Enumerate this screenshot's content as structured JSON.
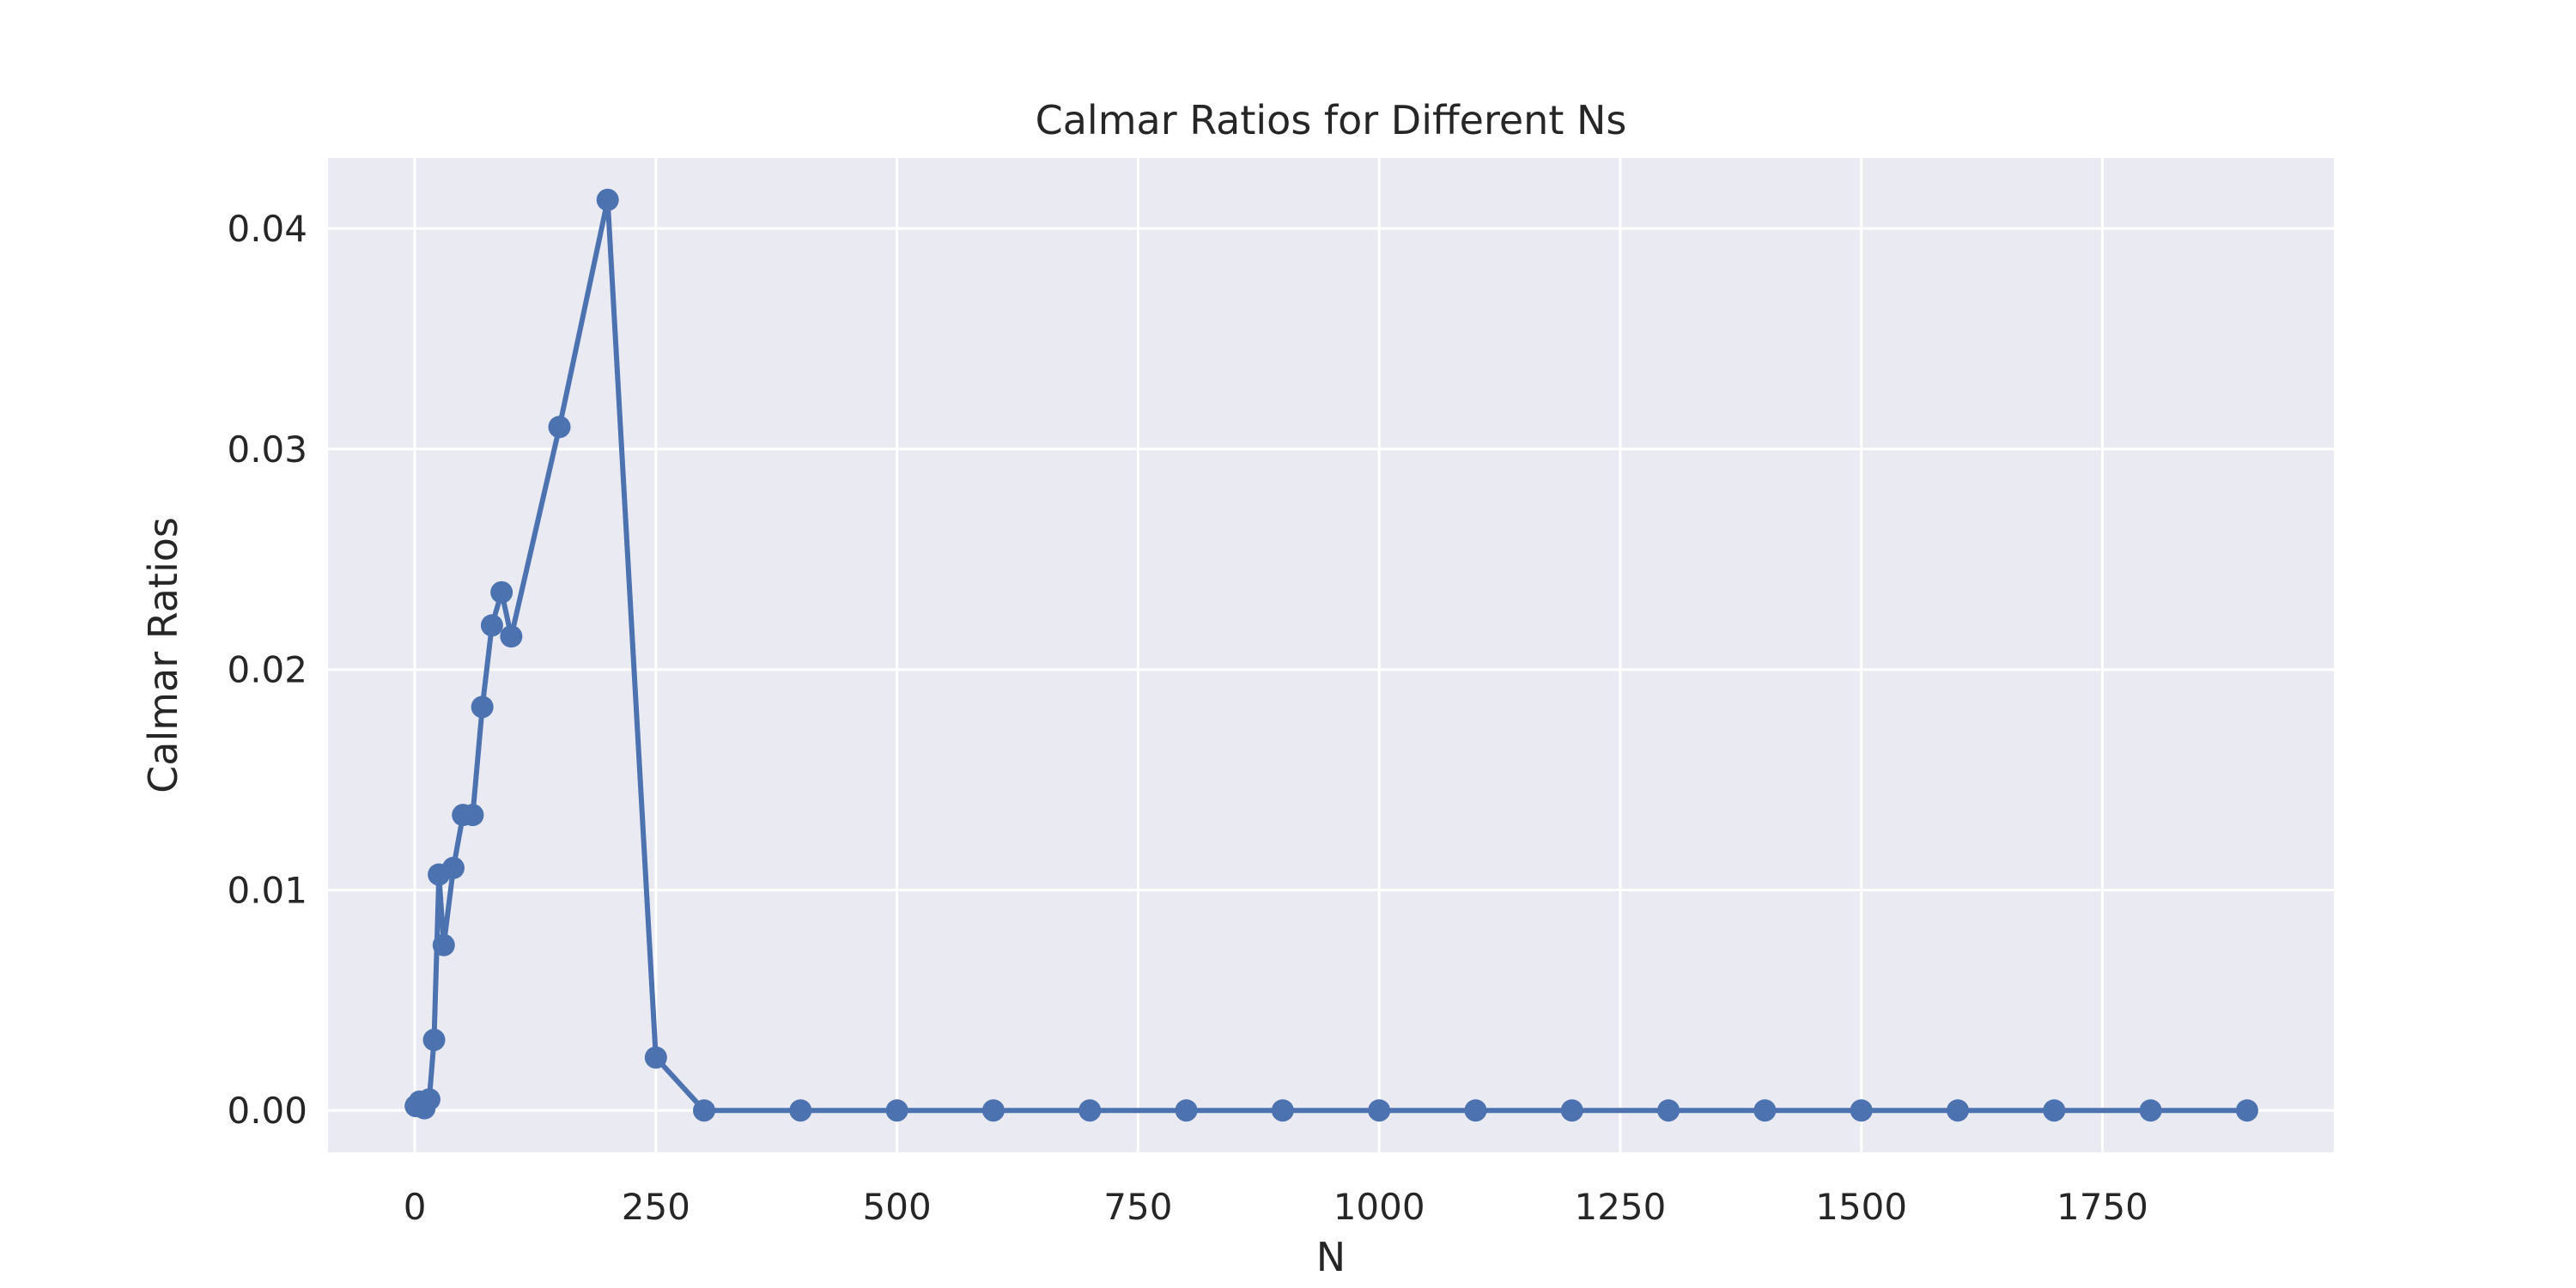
{
  "chart_data": {
    "type": "line",
    "title": "Calmar Ratios for Different Ns",
    "xlabel": "N",
    "ylabel": "Calmar Ratios",
    "xlim": [
      -90,
      1990
    ],
    "ylim": [
      -0.0019,
      0.0432
    ],
    "xticks": [
      0,
      250,
      500,
      750,
      1000,
      1250,
      1500,
      1750
    ],
    "xtick_labels": [
      "0",
      "250",
      "500",
      "750",
      "1000",
      "1250",
      "1500",
      "1750"
    ],
    "yticks": [
      0.0,
      0.01,
      0.02,
      0.03,
      0.04
    ],
    "ytick_labels": [
      "0.00",
      "0.01",
      "0.02",
      "0.03",
      "0.04"
    ],
    "grid": true,
    "legend": false,
    "series": [
      {
        "x": [
          1,
          5,
          10,
          15,
          20,
          25,
          30,
          40,
          50,
          60,
          70,
          80,
          90,
          100,
          150,
          200,
          250,
          300,
          400,
          500,
          600,
          700,
          800,
          900,
          1000,
          1100,
          1200,
          1300,
          1400,
          1500,
          1600,
          1700,
          1800,
          1900
        ],
        "y": [
          0.0002,
          0.0004,
          0.0001,
          0.0005,
          0.0032,
          0.0107,
          0.0075,
          0.011,
          0.0134,
          0.0134,
          0.0183,
          0.022,
          0.0235,
          0.0215,
          0.031,
          0.0413,
          0.0024,
          0.0,
          0.0,
          0.0,
          0.0,
          0.0,
          0.0,
          0.0,
          0.0,
          0.0,
          0.0,
          0.0,
          0.0,
          0.0,
          0.0,
          0.0,
          0.0,
          0.0
        ],
        "color": "#4c72b0",
        "marker": "circle"
      }
    ],
    "colors": {
      "plot_background": "#eaeaf2",
      "grid": "#ffffff",
      "text": "#262626"
    }
  }
}
